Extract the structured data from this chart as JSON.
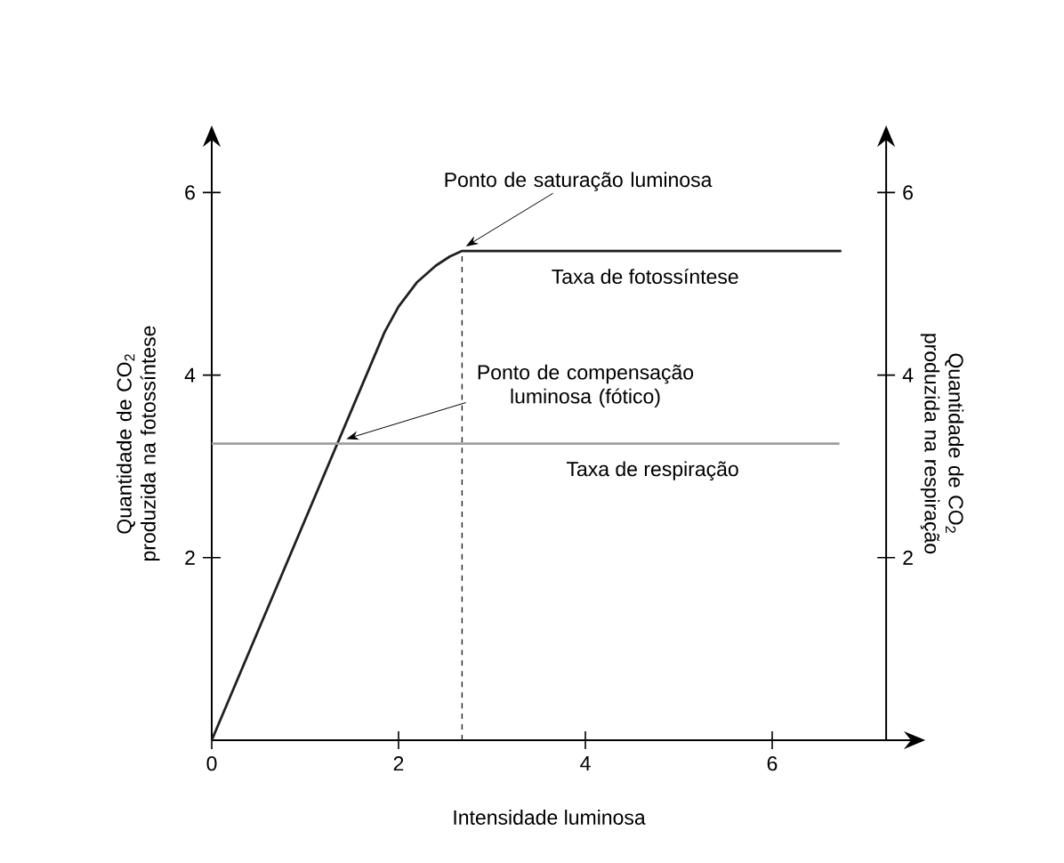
{
  "chart_data": {
    "type": "line",
    "xlabel": "Intensidade luminosa",
    "ylabel": "Quantidade de CO$_{2}$ produzida na fotossíntese",
    "y2label": "Quantidade de CO$_{2}$ produzida na respiração",
    "xlim": [
      0,
      7.22
    ],
    "ylim": [
      0,
      6.5
    ],
    "y2lim": [
      0,
      6.5
    ],
    "xticks": [
      0,
      2,
      4,
      6
    ],
    "yticks": [
      2,
      4,
      6
    ],
    "y2ticks": [
      2,
      4,
      6
    ],
    "grid": false,
    "marker": "none",
    "series": [
      {
        "name": "Taxa de fotossíntese",
        "color": "#231f20",
        "x": [
          0,
          1.85,
          2.0,
          2.2,
          2.4,
          2.55,
          2.68,
          6.74
        ],
        "values": [
          0,
          4.47,
          4.75,
          5.02,
          5.2,
          5.3,
          5.36,
          5.36
        ]
      },
      {
        "name": "Taxa de respiração",
        "color": "#a0a0a0",
        "axis": "y2",
        "x": [
          0,
          6.72
        ],
        "values": [
          3.25,
          3.25
        ]
      }
    ],
    "ref_lines": [
      {
        "axis": "x",
        "value": 2.68,
        "line_style": "dashed",
        "color": "#231f20"
      }
    ],
    "annotations": [
      {
        "text": "Ponto de saturação luminosa",
        "x": 2.68,
        "y": 5.36
      },
      {
        "text": "Ponto de compensação luminosa (fótico)",
        "x": 1.4,
        "y": 3.25
      }
    ]
  }
}
